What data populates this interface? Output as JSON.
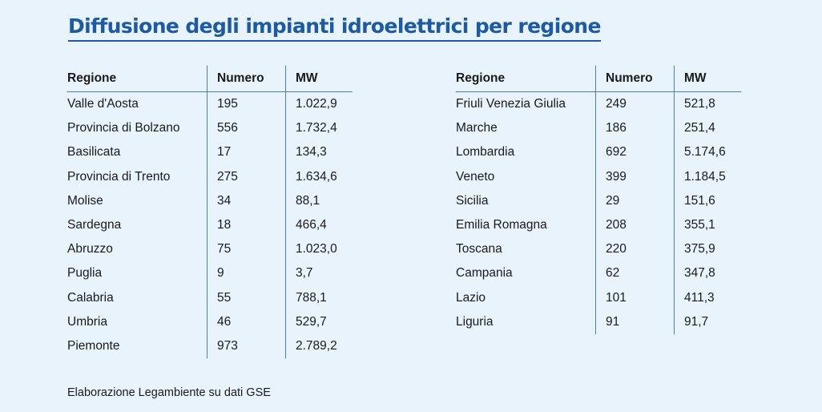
{
  "title": "Diffusione degli impianti idroelettrici per regione",
  "columns": {
    "region": "Regione",
    "number": "Numero",
    "mw": "MW"
  },
  "left_table": [
    {
      "region": "Valle d'Aosta",
      "number": "195",
      "mw": "1.022,9"
    },
    {
      "region": "Provincia di Bolzano",
      "number": "556",
      "mw": "1.732,4"
    },
    {
      "region": "Basilicata",
      "number": "17",
      "mw": "134,3"
    },
    {
      "region": "Provincia di Trento",
      "number": "275",
      "mw": "1.634,6"
    },
    {
      "region": "Molise",
      "number": "34",
      "mw": "88,1"
    },
    {
      "region": "Sardegna",
      "number": "18",
      "mw": "466,4"
    },
    {
      "region": "Abruzzo",
      "number": "75",
      "mw": "1.023,0"
    },
    {
      "region": "Puglia",
      "number": "9",
      "mw": "3,7"
    },
    {
      "region": "Calabria",
      "number": "55",
      "mw": "788,1"
    },
    {
      "region": "Umbria",
      "number": "46",
      "mw": "529,7"
    },
    {
      "region": "Piemonte",
      "number": "973",
      "mw": "2.789,2"
    }
  ],
  "right_table": [
    {
      "region": "Friuli Venezia Giulia",
      "number": "249",
      "mw": "521,8"
    },
    {
      "region": "Marche",
      "number": "186",
      "mw": "251,4"
    },
    {
      "region": "Lombardia",
      "number": "692",
      "mw": "5.174,6"
    },
    {
      "region": "Veneto",
      "number": "399",
      "mw": "1.184,5"
    },
    {
      "region": "Sicilia",
      "number": "29",
      "mw": "151,6"
    },
    {
      "region": "Emilia Romagna",
      "number": "208",
      "mw": "355,1"
    },
    {
      "region": "Toscana",
      "number": "220",
      "mw": "375,9"
    },
    {
      "region": "Campania",
      "number": "62",
      "mw": "347,8"
    },
    {
      "region": "Lazio",
      "number": "101",
      "mw": "411,3"
    },
    {
      "region": "Liguria",
      "number": "91",
      "mw": "91,7"
    }
  ],
  "source": "Elaborazione Legambiente su dati GSE"
}
